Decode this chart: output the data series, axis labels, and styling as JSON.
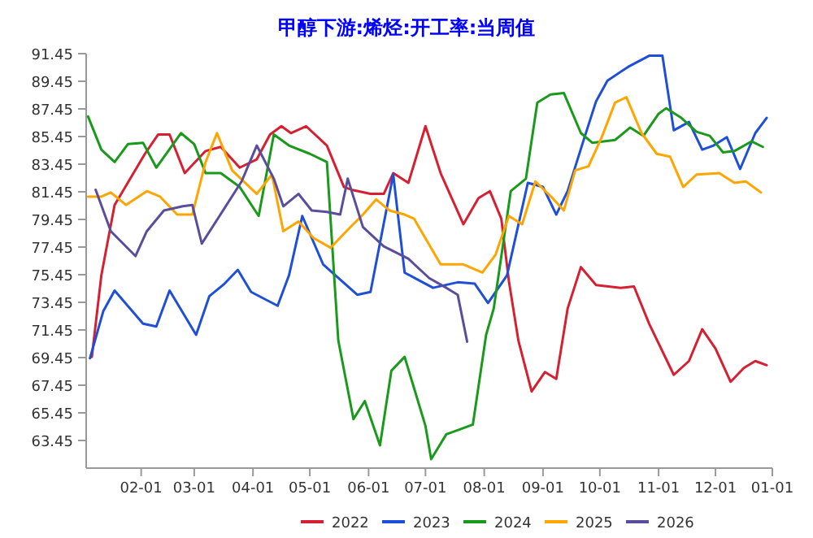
{
  "chart_data": {
    "type": "line",
    "title": "甲醇下游:烯烃:开工率:当周值",
    "xlim": [
      "--01-03",
      "--12-31"
    ],
    "xticks": [
      {
        "value": "--02-01",
        "label": "02-01"
      },
      {
        "value": "--03-01",
        "label": "03-01"
      },
      {
        "value": "--04-01",
        "label": "04-01"
      },
      {
        "value": "--05-01",
        "label": "05-01"
      },
      {
        "value": "--06-01",
        "label": "06-01"
      },
      {
        "value": "--07-01",
        "label": "07-01"
      },
      {
        "value": "--08-01",
        "label": "08-01"
      },
      {
        "value": "--09-01",
        "label": "09-01"
      },
      {
        "value": "--10-01",
        "label": "10-01"
      },
      {
        "value": "--11-01",
        "label": "11-01"
      },
      {
        "value": "--12-01",
        "label": "12-01"
      },
      {
        "value": "--12-31",
        "label": "01-01"
      }
    ],
    "ylim": [
      61.45,
      91.45
    ],
    "yticks": [
      63.45,
      65.45,
      67.45,
      69.45,
      71.45,
      73.45,
      75.45,
      77.45,
      79.45,
      81.45,
      83.45,
      85.45,
      87.45,
      89.45,
      91.45
    ],
    "legend": "bottom",
    "series": [
      {
        "name": "2022",
        "color": "#d62031",
        "x": [
          "--01-06",
          "--01-11",
          "--01-18",
          "--02-03",
          "--02-10",
          "--02-16",
          "--02-24",
          "--03-07",
          "--03-15",
          "--03-25",
          "--04-03",
          "--04-10",
          "--04-16",
          "--04-21",
          "--04-29",
          "--05-10",
          "--05-19",
          "--05-23",
          "--06-02",
          "--06-09",
          "--06-14",
          "--06-22",
          "--07-01",
          "--07-09",
          "--07-21",
          "--07-29",
          "--08-04",
          "--08-10",
          "--08-14",
          "--08-19",
          "--08-26",
          "--09-02",
          "--09-08",
          "--09-14",
          "--09-21",
          "--09-29",
          "--10-12",
          "--10-19",
          "--10-27",
          "--11-09",
          "--11-17",
          "--11-24",
          "--12-01",
          "--12-09",
          "--12-16",
          "--12-22",
          "--12-28"
        ],
        "values": [
          69.5,
          75.4,
          80.5,
          84.2,
          85.6,
          85.6,
          82.8,
          84.4,
          84.7,
          83.2,
          83.8,
          85.6,
          86.2,
          85.7,
          86.2,
          84.8,
          81.8,
          81.6,
          81.3,
          81.3,
          82.8,
          82.1,
          86.2,
          82.8,
          79.1,
          81.0,
          81.5,
          79.5,
          75.0,
          70.7,
          67.0,
          68.4,
          67.9,
          73.0,
          76.0,
          74.7,
          74.5,
          74.6,
          71.9,
          68.2,
          69.2,
          71.5,
          70.1,
          67.7,
          68.7,
          69.2,
          68.9
        ]
      },
      {
        "name": "2023",
        "color": "#1f4fd8",
        "x": [
          "--01-05",
          "--01-12",
          "--01-18",
          "--02-02",
          "--02-09",
          "--02-16",
          "--03-02",
          "--03-09",
          "--03-17",
          "--03-24",
          "--03-31",
          "--04-14",
          "--04-20",
          "--04-27",
          "--05-08",
          "--05-26",
          "--06-02",
          "--06-14",
          "--06-20",
          "--07-05",
          "--07-18",
          "--07-27",
          "--08-03",
          "--08-13",
          "--08-24",
          "--09-01",
          "--09-08",
          "--09-14",
          "--09-22",
          "--09-29",
          "--10-05",
          "--10-16",
          "--10-27",
          "--11-03",
          "--11-09",
          "--11-17",
          "--11-24",
          "--11-30",
          "--12-07",
          "--12-14",
          "--12-22",
          "--12-28"
        ],
        "values": [
          69.4,
          72.8,
          74.3,
          71.9,
          71.7,
          74.3,
          71.1,
          73.9,
          74.8,
          75.8,
          74.2,
          73.2,
          75.4,
          79.7,
          76.2,
          74.0,
          74.2,
          82.7,
          75.6,
          74.5,
          74.9,
          74.8,
          73.4,
          75.4,
          82.1,
          81.8,
          79.8,
          81.5,
          85.0,
          88.0,
          89.5,
          90.5,
          91.3,
          91.3,
          85.9,
          86.5,
          84.5,
          84.8,
          85.4,
          83.1,
          85.7,
          86.8
        ]
      },
      {
        "name": "2024",
        "color": "#1a9a1a",
        "x": [
          "--01-04",
          "--01-11",
          "--01-18",
          "--01-25",
          "--02-02",
          "--02-09",
          "--02-22",
          "--03-01",
          "--03-07",
          "--03-15",
          "--03-25",
          "--04-04",
          "--04-12",
          "--04-20",
          "--05-01",
          "--05-10",
          "--05-16",
          "--05-24",
          "--05-30",
          "--06-07",
          "--06-13",
          "--06-20",
          "--07-01",
          "--07-04",
          "--07-12",
          "--07-20",
          "--07-26",
          "--08-02",
          "--08-06",
          "--08-15",
          "--08-23",
          "--08-29",
          "--09-05",
          "--09-12",
          "--09-21",
          "--09-27",
          "--10-09",
          "--10-17",
          "--10-24",
          "--11-01",
          "--11-05",
          "--11-13",
          "--11-21",
          "--11-28",
          "--12-05",
          "--12-11",
          "--12-20",
          "--12-26"
        ],
        "values": [
          86.9,
          84.5,
          83.6,
          84.9,
          85.0,
          83.2,
          85.7,
          84.9,
          82.8,
          82.8,
          81.8,
          79.7,
          85.6,
          84.8,
          84.2,
          83.6,
          70.7,
          65.0,
          66.3,
          63.1,
          68.5,
          69.5,
          64.5,
          62.1,
          63.9,
          64.3,
          64.6,
          71.1,
          73.0,
          81.5,
          82.4,
          87.9,
          88.5,
          88.6,
          85.7,
          85.0,
          85.2,
          86.1,
          85.5,
          87.1,
          87.5,
          86.8,
          85.8,
          85.5,
          84.3,
          84.4,
          85.1,
          84.7
        ]
      },
      {
        "name": "2025",
        "color": "#ffa500",
        "x": [
          "--01-04",
          "--01-11",
          "--01-16",
          "--01-24",
          "--02-04",
          "--02-11",
          "--02-20",
          "--02-28",
          "--03-07",
          "--03-13",
          "--03-21",
          "--04-03",
          "--04-11",
          "--04-17",
          "--04-25",
          "--05-03",
          "--05-12",
          "--05-21",
          "--05-29",
          "--06-05",
          "--06-12",
          "--06-20",
          "--06-25",
          "--07-09",
          "--07-21",
          "--07-31",
          "--08-07",
          "--08-14",
          "--08-21",
          "--08-28",
          "--09-06",
          "--09-12",
          "--09-18",
          "--09-25",
          "--10-02",
          "--10-09",
          "--10-15",
          "--10-23",
          "--10-31",
          "--11-07",
          "--11-14",
          "--11-21",
          "--12-03",
          "--12-11",
          "--12-17",
          "--12-25"
        ],
        "values": [
          81.1,
          81.1,
          81.4,
          80.5,
          81.5,
          81.1,
          79.8,
          79.8,
          83.6,
          85.7,
          83.0,
          81.3,
          82.7,
          78.6,
          79.3,
          78.1,
          77.4,
          78.7,
          79.8,
          80.9,
          80.1,
          79.8,
          79.5,
          76.2,
          76.2,
          75.6,
          76.9,
          79.7,
          79.1,
          82.2,
          81.0,
          80.1,
          83.0,
          83.3,
          85.4,
          87.9,
          88.3,
          85.7,
          84.2,
          84.0,
          81.8,
          82.7,
          82.8,
          82.1,
          82.2,
          81.4
        ]
      },
      {
        "name": "2026",
        "color": "#5a4e9c",
        "x": [
          "--01-08",
          "--01-16",
          "--01-29",
          "--02-04",
          "--02-13",
          "--02-23",
          "--02-28",
          "--03-05",
          "--03-26",
          "--04-03",
          "--04-12",
          "--04-17",
          "--04-25",
          "--05-02",
          "--05-10",
          "--05-17",
          "--05-21",
          "--05-29",
          "--06-09",
          "--06-22",
          "--07-03",
          "--07-12",
          "--07-18",
          "--07-23"
        ],
        "values": [
          81.6,
          78.6,
          76.8,
          78.6,
          80.1,
          80.4,
          80.5,
          77.7,
          82.2,
          84.8,
          82.4,
          80.4,
          81.3,
          80.1,
          80.0,
          79.8,
          82.4,
          78.9,
          77.5,
          76.6,
          75.2,
          74.5,
          74.0,
          70.6
        ]
      }
    ]
  }
}
